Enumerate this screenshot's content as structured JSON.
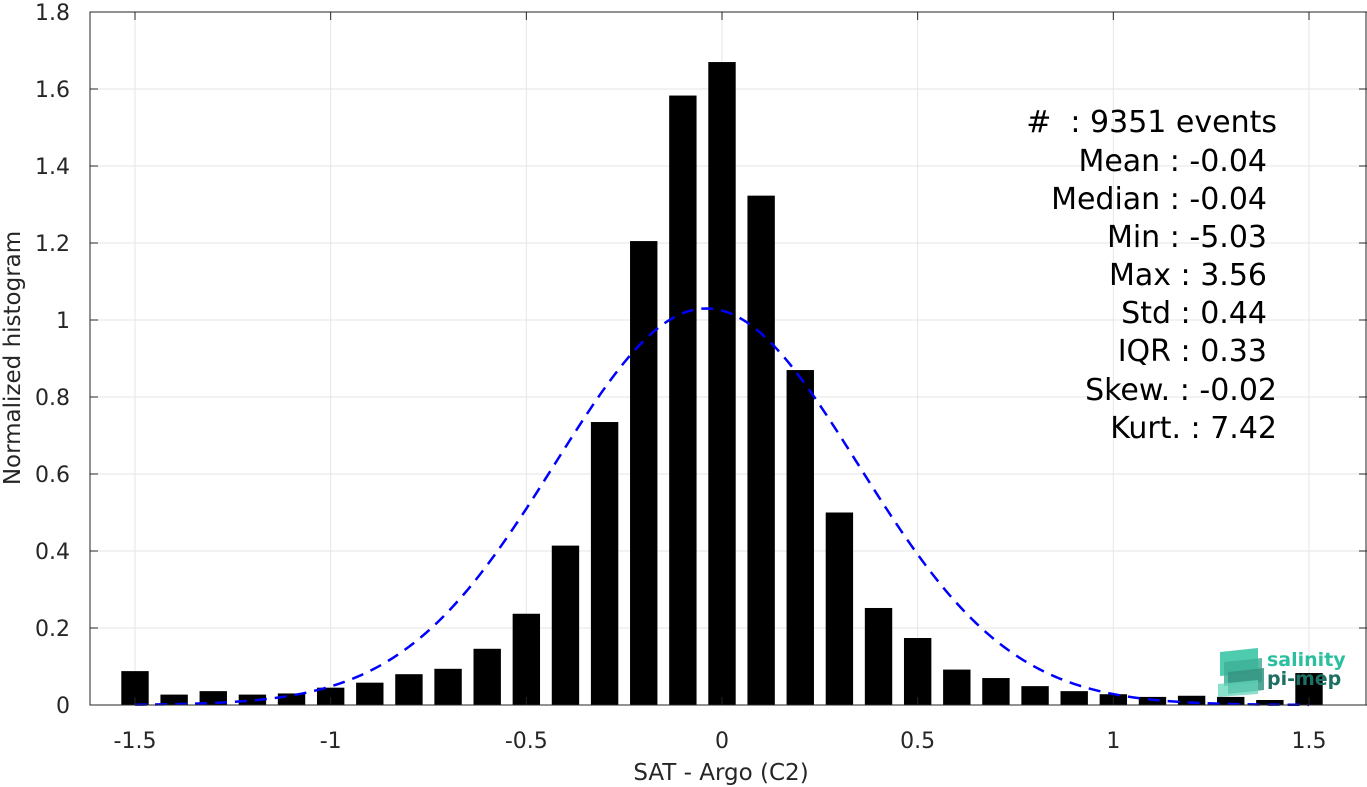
{
  "chart_data": {
    "type": "bar",
    "xlabel": "SAT - Argo (C2)",
    "ylabel": "Normalized histogram",
    "xlim": [
      -1.55,
      1.55
    ],
    "ylim": [
      0,
      1.8
    ],
    "grid": true,
    "x_ticks": [
      -1.5,
      -1,
      -0.5,
      0,
      0.5,
      1,
      1.5
    ],
    "x_tick_labels": [
      "-1.5",
      "-1",
      "-0.5",
      "0",
      "0.5",
      "1",
      "1.5"
    ],
    "y_ticks": [
      0,
      0.2,
      0.4,
      0.6,
      0.8,
      1,
      1.2,
      1.4,
      1.6,
      1.8
    ],
    "y_tick_labels": [
      "0",
      "0.2",
      "0.4",
      "0.6",
      "0.8",
      "1",
      "1.2",
      "1.4",
      "1.6",
      "1.8"
    ],
    "bar_width": 0.07,
    "bars": {
      "x": [
        -1.5,
        -1.4,
        -1.3,
        -1.2,
        -1.1,
        -1.0,
        -0.9,
        -0.8,
        -0.7,
        -0.6,
        -0.5,
        -0.4,
        -0.3,
        -0.2,
        -0.1,
        0.0,
        0.1,
        0.2,
        0.3,
        0.4,
        0.5,
        0.6,
        0.7,
        0.8,
        0.9,
        1.0,
        1.1,
        1.2,
        1.3,
        1.4,
        1.5
      ],
      "values": [
        0.088,
        0.027,
        0.036,
        0.027,
        0.03,
        0.045,
        0.058,
        0.08,
        0.094,
        0.146,
        0.237,
        0.414,
        0.735,
        1.205,
        1.583,
        1.67,
        1.323,
        0.87,
        0.5,
        0.252,
        0.174,
        0.092,
        0.07,
        0.049,
        0.036,
        0.028,
        0.021,
        0.024,
        0.021,
        0.013,
        0.083
      ],
      "color": "#000000"
    },
    "fit": {
      "type": "gaussian",
      "mean": -0.04,
      "peak": 1.03,
      "sigma": 0.388,
      "x_range": [
        -1.5,
        1.5
      ],
      "color": "#0000ff",
      "style": "dashed"
    },
    "stats": {
      "count_line": "#  : 9351 events",
      "lines": [
        "Mean : -0.04",
        "Median : -0.04",
        "Min : -5.03",
        "Max : 3.56",
        "Std : 0.44",
        "IQR : 0.33",
        "Skew. : -0.02",
        "Kurt. : 7.42"
      ]
    }
  },
  "logo": {
    "line1": "salinity",
    "line2": "pi-mep",
    "color_light": "#2bbfa0",
    "color_dark": "#1b6f63"
  }
}
